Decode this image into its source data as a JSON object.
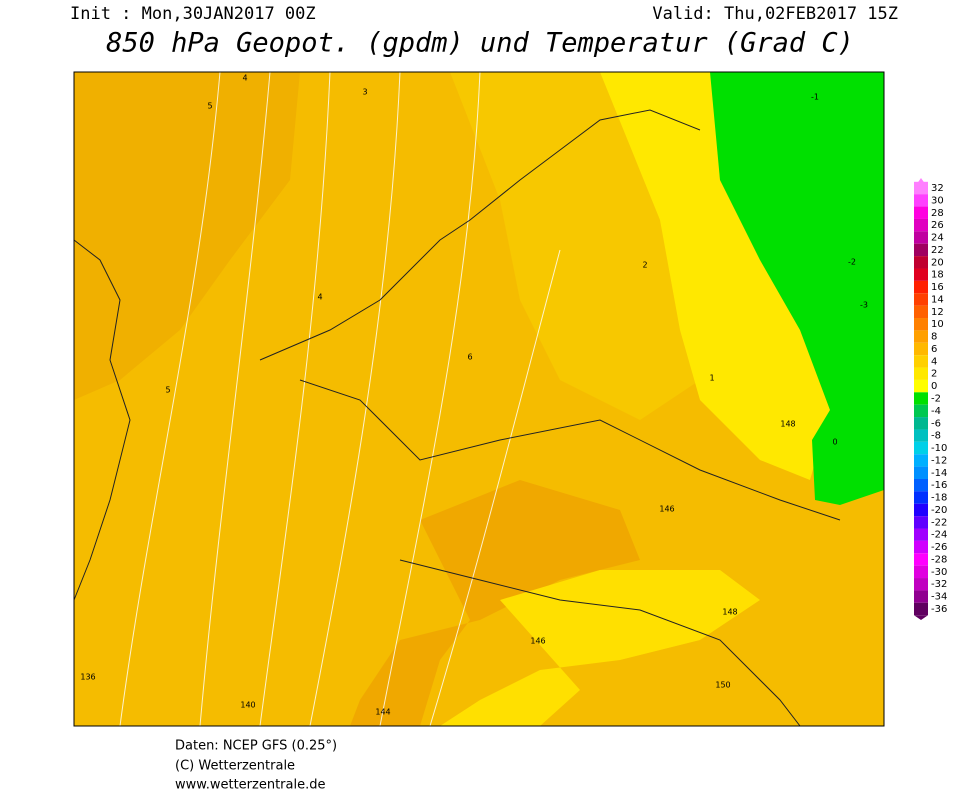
{
  "header": {
    "init": "Init : Mon,30JAN2017 00Z",
    "valid": "Valid: Thu,02FEB2017 15Z",
    "title": "850 hPa Geopot. (gpdm) und Temperatur (Grad C)"
  },
  "map": {
    "geopotential_labels": [
      "136",
      "140",
      "144",
      "146",
      "148",
      "150",
      "146",
      "148"
    ],
    "temperature_labels": [
      "4",
      "5",
      "3",
      "2",
      "1",
      "0",
      "-1",
      "-2",
      "-3",
      "6",
      "5",
      "4"
    ]
  },
  "colorbar": {
    "levels": [
      32,
      30,
      28,
      26,
      24,
      22,
      20,
      18,
      16,
      14,
      12,
      10,
      8,
      6,
      4,
      2,
      0,
      -2,
      -4,
      -6,
      -8,
      -10,
      -12,
      -14,
      -16,
      -18,
      -20,
      -22,
      -24,
      -26,
      -28,
      -30,
      -32,
      -34,
      -36
    ],
    "colors": [
      "#ff80ff",
      "#ff40ff",
      "#ff00e0",
      "#e000c0",
      "#c000a0",
      "#a00060",
      "#c00030",
      "#e00020",
      "#ff2000",
      "#ff4000",
      "#ff6000",
      "#ff8000",
      "#ffa000",
      "#ffb800",
      "#ffd000",
      "#ffe800",
      "#ffff00",
      "#00e000",
      "#00c850",
      "#00b890",
      "#00c0c0",
      "#00d0e8",
      "#00b0ff",
      "#0090ff",
      "#0060ff",
      "#0030ff",
      "#2000ff",
      "#6000ff",
      "#a000ff",
      "#d000ff",
      "#ff00ff",
      "#e000e0",
      "#c000c0",
      "#900090",
      "#600060"
    ]
  },
  "footer": {
    "line1": "Daten: NCEP GFS (0.25°)",
    "line2": "(C) Wetterzentrale",
    "line3": "www.wetterzentrale.de"
  }
}
